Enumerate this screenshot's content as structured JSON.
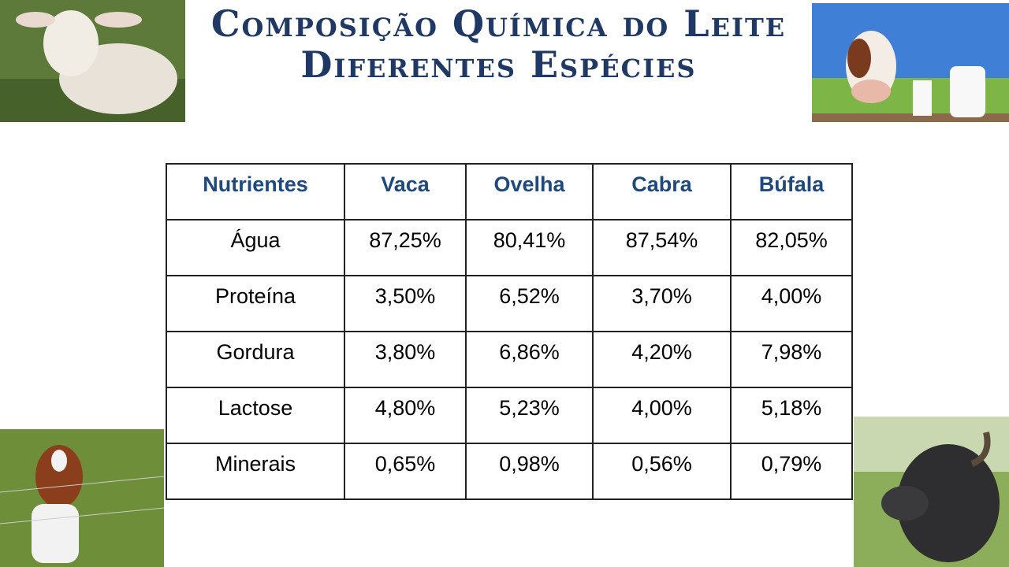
{
  "header": {
    "title": [
      "Composição Química do Leite",
      "Diferentes Espécies"
    ]
  },
  "table": {
    "columns": [
      "Nutrientes",
      "Vaca",
      "Ovelha",
      "Cabra",
      "Búfala"
    ],
    "rows": [
      [
        "Água",
        "87,25%",
        "80,41%",
        "87,54%",
        "82,05%"
      ],
      [
        "Proteína",
        "3,50%",
        "6,52%",
        "3,70%",
        "4,00%"
      ],
      [
        "Gordura",
        "3,80%",
        "6,86%",
        "4,20%",
        "7,98%"
      ],
      [
        "Lactose",
        "4,80%",
        "5,23%",
        "4,00%",
        "5,18%"
      ],
      [
        "Minerais",
        "0,65%",
        "0,98%",
        "0,56%",
        "0,79%"
      ]
    ]
  }
}
